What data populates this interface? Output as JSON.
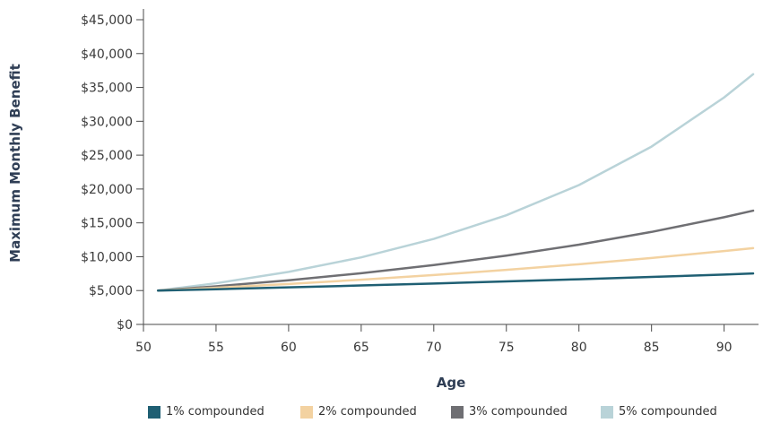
{
  "chart_data": {
    "type": "line",
    "xlabel": "Age",
    "ylabel": "Maximum Monthly Benefit",
    "xlim": [
      50,
      92
    ],
    "ylim": [
      0,
      45000
    ],
    "x_ticks": [
      50,
      55,
      60,
      65,
      70,
      75,
      80,
      85,
      90
    ],
    "x_tick_labels": [
      "50",
      "55",
      "60",
      "65",
      "70",
      "75",
      "80",
      "85",
      "90"
    ],
    "y_ticks": [
      0,
      5000,
      10000,
      15000,
      20000,
      25000,
      30000,
      35000,
      40000,
      45000
    ],
    "y_tick_labels": [
      "$0",
      "$5,000",
      "$10,000",
      "$15,000",
      "$20,000",
      "$25,000",
      "$30,000",
      "$35,000",
      "$40,000",
      "$45,000"
    ],
    "grid": false,
    "legend_position": "bottom",
    "x": [
      51,
      55,
      60,
      65,
      70,
      75,
      80,
      85,
      90,
      92
    ],
    "series": [
      {
        "name": "1% compounded",
        "color": "#1f5f73",
        "values": [
          5000,
          5200,
          5470,
          5750,
          6040,
          6350,
          6670,
          7010,
          7370,
          7520
        ]
      },
      {
        "name": "2% compounded",
        "color": "#f3d2a1",
        "values": [
          5000,
          5410,
          5980,
          6600,
          7290,
          8050,
          8890,
          9810,
          10830,
          11270
        ]
      },
      {
        "name": "3% compounded",
        "color": "#6f6f73",
        "values": [
          5000,
          5630,
          6520,
          7560,
          8770,
          10160,
          11780,
          13660,
          15830,
          16800
        ]
      },
      {
        "name": "5% compounded",
        "color": "#b9d3d8",
        "values": [
          5000,
          6080,
          7760,
          9900,
          12630,
          16120,
          20580,
          26260,
          33520,
          36950
        ]
      }
    ]
  }
}
